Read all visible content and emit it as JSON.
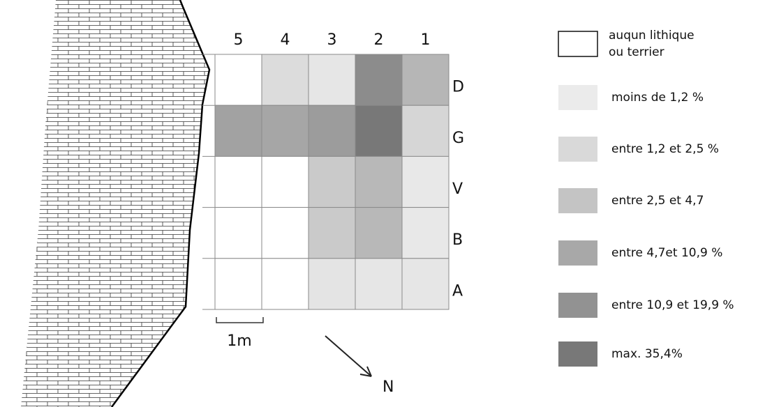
{
  "columns": [
    "5",
    "4",
    "3",
    "2",
    "1"
  ],
  "rows": [
    {
      "label": "D",
      "cells": [
        "#ffffff",
        "#dcdcdc",
        "#e6e6e6",
        "#8c8c8c",
        "#b6b6b6"
      ]
    },
    {
      "label": "G",
      "cells": [
        "#a2a2a2",
        "#a6a6a6",
        "#9c9c9c",
        "#787878",
        "#d6d6d6"
      ]
    },
    {
      "label": "V",
      "cells": [
        "#ffffff",
        "#ffffff",
        "#cacaca",
        "#b8b8b8",
        "#e8e8e8"
      ]
    },
    {
      "label": "B",
      "cells": [
        "#ffffff",
        "#ffffff",
        "#cacaca",
        "#b8b8b8",
        "#e8e8e8"
      ]
    },
    {
      "label": "A",
      "cells": [
        "#ffffff",
        "#ffffff",
        "#e4e4e4",
        "#e6e6e6",
        "#e6e6e6"
      ]
    }
  ],
  "scale": "1m",
  "north": "N",
  "legend": [
    {
      "label": [
        "auqun lithique",
        "ou terrier"
      ],
      "color": "#ffffff"
    },
    {
      "label": [
        "moins de 1,2 %"
      ],
      "color": "#ebebeb"
    },
    {
      "label": [
        "entre 1,2 et 2,5 %"
      ],
      "color": "#d9d9d9"
    },
    {
      "label": [
        "entre 2,5 et 4,7"
      ],
      "color": "#c4c4c4"
    },
    {
      "label": [
        "entre 4,7et 10,9 %"
      ],
      "color": "#a8a8a8"
    },
    {
      "label": [
        "entre 10,9  et 19,9 %"
      ],
      "color": "#929292"
    },
    {
      "label": [
        "max. 35,4%"
      ],
      "color": "#787878"
    }
  ]
}
